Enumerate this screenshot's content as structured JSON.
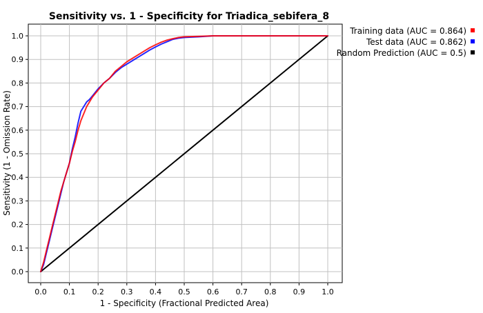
{
  "chart_data": {
    "type": "line",
    "title": "Sensitivity vs. 1 - Specificity for Triadica_sebifera_8",
    "xlabel": "1 - Specificity  (Fractional Predicted Area)",
    "ylabel": "Sensitivity  (1 - Omission Rate)",
    "xlim": [
      0.0,
      1.0
    ],
    "ylim": [
      0.0,
      1.0
    ],
    "xticks": [
      "0.0",
      "0.1",
      "0.2",
      "0.3",
      "0.4",
      "0.5",
      "0.6",
      "0.7",
      "0.8",
      "0.9",
      "1.0"
    ],
    "yticks": [
      "0.0",
      "0.1",
      "0.2",
      "0.3",
      "0.4",
      "0.5",
      "0.6",
      "0.7",
      "0.8",
      "0.9",
      "1.0"
    ],
    "grid": true,
    "legend_position": "right-top",
    "series": [
      {
        "name": "Training data (AUC = 0.864)",
        "color": "#ff0000",
        "x": [
          0.0,
          0.01,
          0.02,
          0.03,
          0.04,
          0.05,
          0.06,
          0.07,
          0.08,
          0.09,
          0.1,
          0.11,
          0.12,
          0.13,
          0.14,
          0.15,
          0.16,
          0.17,
          0.18,
          0.19,
          0.2,
          0.22,
          0.24,
          0.26,
          0.28,
          0.3,
          0.32,
          0.34,
          0.36,
          0.38,
          0.4,
          0.42,
          0.44,
          0.46,
          0.48,
          0.5,
          0.55,
          0.6,
          0.7,
          0.8,
          0.9,
          1.0
        ],
        "y": [
          0.0,
          0.04,
          0.09,
          0.14,
          0.19,
          0.24,
          0.29,
          0.34,
          0.38,
          0.42,
          0.46,
          0.51,
          0.55,
          0.6,
          0.64,
          0.67,
          0.7,
          0.72,
          0.74,
          0.755,
          0.77,
          0.8,
          0.82,
          0.85,
          0.87,
          0.89,
          0.905,
          0.92,
          0.935,
          0.95,
          0.962,
          0.973,
          0.982,
          0.988,
          0.993,
          0.996,
          0.998,
          1.0,
          1.0,
          1.0,
          1.0,
          1.0
        ]
      },
      {
        "name": "Test data (AUC = 0.862)",
        "color": "#0000ff",
        "x": [
          0.0,
          0.01,
          0.02,
          0.03,
          0.04,
          0.05,
          0.06,
          0.07,
          0.08,
          0.09,
          0.1,
          0.11,
          0.12,
          0.13,
          0.14,
          0.15,
          0.16,
          0.17,
          0.18,
          0.19,
          0.2,
          0.22,
          0.24,
          0.26,
          0.28,
          0.3,
          0.32,
          0.34,
          0.36,
          0.38,
          0.4,
          0.42,
          0.44,
          0.46,
          0.48,
          0.5,
          0.55,
          0.6,
          0.7,
          0.8,
          0.9,
          1.0
        ],
        "y": [
          0.0,
          0.03,
          0.08,
          0.13,
          0.18,
          0.23,
          0.28,
          0.33,
          0.38,
          0.42,
          0.46,
          0.52,
          0.57,
          0.63,
          0.68,
          0.7,
          0.72,
          0.73,
          0.745,
          0.76,
          0.775,
          0.8,
          0.82,
          0.845,
          0.865,
          0.88,
          0.895,
          0.91,
          0.925,
          0.94,
          0.953,
          0.965,
          0.975,
          0.985,
          0.99,
          0.993,
          0.996,
          1.0,
          1.0,
          1.0,
          1.0,
          1.0
        ]
      },
      {
        "name": "Random Prediction (AUC = 0.5)",
        "color": "#000000",
        "x": [
          0.0,
          1.0
        ],
        "y": [
          0.0,
          1.0
        ]
      }
    ]
  }
}
